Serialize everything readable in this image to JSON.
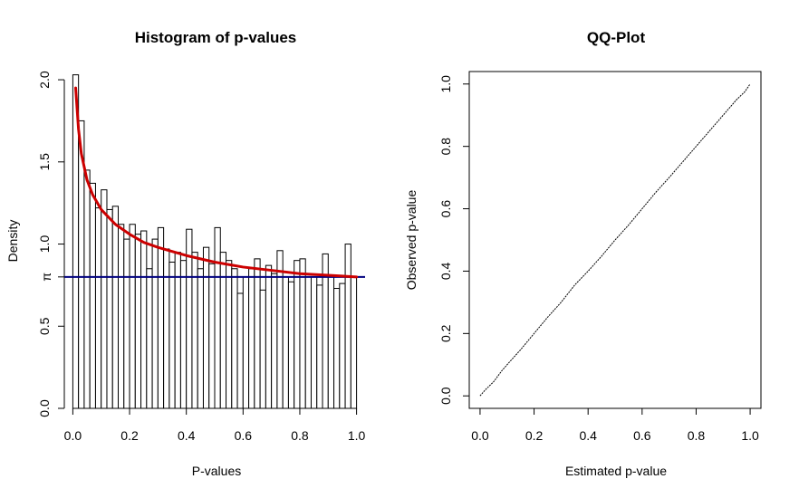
{
  "chart_data": [
    {
      "type": "bar",
      "title": "Histogram of p-values",
      "xlabel": "P-values",
      "ylabel": "Density",
      "xlim": [
        -0.03,
        1.03
      ],
      "ylim": [
        0,
        2.05
      ],
      "x_ticks": [
        0.0,
        0.2,
        0.4,
        0.6,
        0.8,
        1.0
      ],
      "x_tick_labels": [
        "0.0",
        "0.2",
        "0.4",
        "0.6",
        "0.8",
        "1.0"
      ],
      "y_ticks": [
        0.0,
        0.5,
        1.0,
        1.5,
        2.0
      ],
      "y_tick_labels": [
        "0.0",
        "0.5",
        "1.0",
        "1.5",
        "2.0"
      ],
      "pi_label": "π",
      "bin_width": 0.02,
      "bin_start": 0.0,
      "bar_color": "#ffffff",
      "bar_stroke": "#000000",
      "values": [
        2.03,
        1.75,
        1.45,
        1.37,
        1.22,
        1.33,
        1.21,
        1.23,
        1.12,
        1.03,
        1.12,
        1.06,
        1.08,
        0.85,
        1.03,
        1.1,
        0.97,
        0.89,
        0.95,
        0.9,
        1.09,
        0.95,
        0.85,
        0.98,
        0.88,
        1.1,
        0.95,
        0.9,
        0.85,
        0.7,
        0.8,
        0.85,
        0.91,
        0.72,
        0.87,
        0.82,
        0.96,
        0.8,
        0.77,
        0.9,
        0.91,
        0.8,
        0.8,
        0.75,
        0.94,
        0.8,
        0.73,
        0.76,
        1.0,
        0.8
      ],
      "pi0": 0.8,
      "pi0_color": "#00007f",
      "fitted_curve": {
        "color": "#cc0000",
        "x": [
          0.01,
          0.02,
          0.03,
          0.05,
          0.07,
          0.1,
          0.15,
          0.2,
          0.25,
          0.3,
          0.4,
          0.5,
          0.6,
          0.7,
          0.8,
          0.9,
          1.0
        ],
        "y": [
          1.95,
          1.7,
          1.55,
          1.39,
          1.3,
          1.21,
          1.12,
          1.06,
          1.01,
          0.98,
          0.93,
          0.89,
          0.86,
          0.84,
          0.82,
          0.81,
          0.8
        ]
      }
    },
    {
      "type": "line",
      "title": "QQ-Plot",
      "xlabel": "Estimated p-value",
      "ylabel": "Observed p-value",
      "xlim": [
        -0.04,
        1.04
      ],
      "ylim": [
        -0.04,
        1.04
      ],
      "x_ticks": [
        0.0,
        0.2,
        0.4,
        0.6,
        0.8,
        1.0
      ],
      "x_tick_labels": [
        "0.0",
        "0.2",
        "0.4",
        "0.6",
        "0.8",
        "1.0"
      ],
      "y_ticks": [
        0.0,
        0.2,
        0.4,
        0.6,
        0.8,
        1.0
      ],
      "y_tick_labels": [
        "0.0",
        "0.2",
        "0.4",
        "0.6",
        "0.8",
        "1.0"
      ],
      "line_color": "#000000",
      "x": [
        0.0,
        0.02,
        0.05,
        0.08,
        0.1,
        0.15,
        0.2,
        0.25,
        0.3,
        0.35,
        0.4,
        0.45,
        0.5,
        0.55,
        0.6,
        0.65,
        0.7,
        0.75,
        0.8,
        0.85,
        0.9,
        0.95,
        0.98,
        1.0
      ],
      "y": [
        0.0,
        0.02,
        0.045,
        0.08,
        0.1,
        0.148,
        0.2,
        0.252,
        0.3,
        0.355,
        0.4,
        0.448,
        0.5,
        0.548,
        0.6,
        0.652,
        0.7,
        0.75,
        0.8,
        0.85,
        0.9,
        0.95,
        0.975,
        1.0
      ]
    }
  ]
}
